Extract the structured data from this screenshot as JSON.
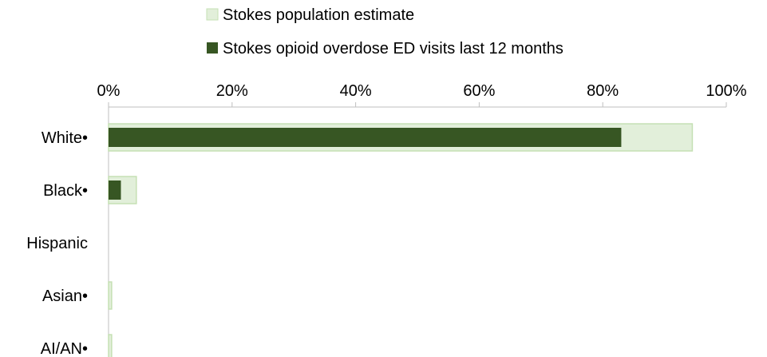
{
  "chart_data": {
    "type": "bar",
    "orientation": "horizontal",
    "legend_position": "top",
    "grid": false,
    "categories": [
      "White•",
      "Black•",
      "Hispanic",
      "Asian•",
      "AI/AN•"
    ],
    "xlim": [
      0,
      100
    ],
    "x_ticks": [
      "0%",
      "20%",
      "40%",
      "60%",
      "80%",
      "100%"
    ],
    "series": [
      {
        "name": "Stokes population estimate",
        "color": "#e2efda",
        "border_color": "#c5e0b4",
        "values": [
          94.5,
          4.5,
          0,
          0.5,
          0.5
        ]
      },
      {
        "name": "Stokes opioid overdose ED visits last 12 months",
        "color": "#375623",
        "border_color": "#375623",
        "values": [
          83,
          2,
          0,
          0,
          0
        ]
      }
    ]
  }
}
